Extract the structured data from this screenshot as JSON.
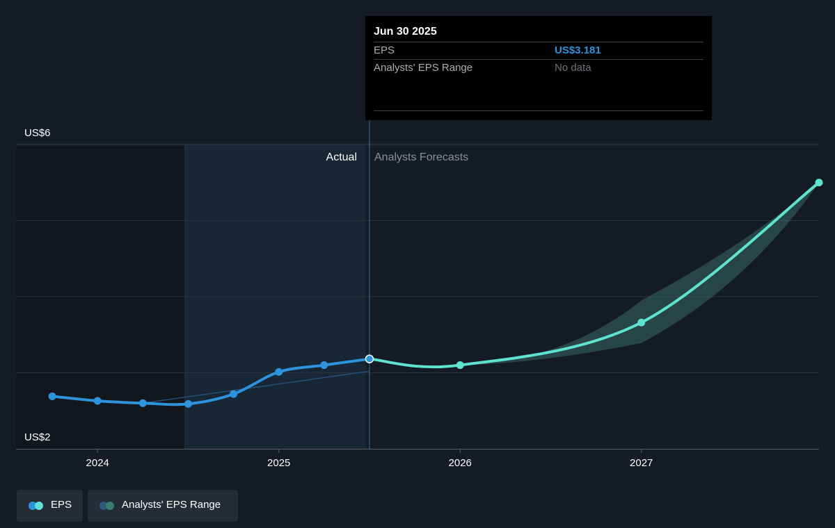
{
  "tooltip": {
    "date": "Jun 30 2025",
    "eps_label": "EPS",
    "eps_value": "US$3.181",
    "range_label": "Analysts' EPS Range",
    "range_value": "No data"
  },
  "legend": {
    "eps_label": "EPS",
    "range_label": "Analysts' EPS Range"
  },
  "colors": {
    "background": "#151b24",
    "eps_actual": "#2e93dd",
    "eps_forecast": "#5de3cf",
    "range_band": "#3d7a74",
    "tooltip_value": "#2e93dd",
    "muted_text": "#8a8f96"
  },
  "chart_data": {
    "type": "line",
    "y_tick_labels": [
      "US$6",
      "US$2"
    ],
    "ylim": [
      2,
      6
    ],
    "x_tick_labels": [
      "2024",
      "2025",
      "2026",
      "2027"
    ],
    "x_ticks": [
      2024.0,
      2025.0,
      2026.0,
      2027.0
    ],
    "xlim": [
      2023.55,
      2027.98
    ],
    "grid": true,
    "section_labels": {
      "actual": "Actual",
      "forecast": "Analysts Forecasts"
    },
    "divider_x": 2025.5,
    "series": [
      {
        "name": "EPS",
        "kind": "actual",
        "points": [
          [
            2023.75,
            2.69
          ],
          [
            2024.0,
            2.63
          ],
          [
            2024.25,
            2.6
          ],
          [
            2024.5,
            2.59
          ],
          [
            2024.75,
            2.72
          ],
          [
            2025.0,
            3.01
          ],
          [
            2025.25,
            3.1
          ],
          [
            2025.5,
            3.181
          ]
        ]
      },
      {
        "name": "EPS",
        "kind": "forecast",
        "points": [
          [
            2025.5,
            3.181
          ],
          [
            2026.0,
            3.1
          ],
          [
            2027.0,
            3.66
          ],
          [
            2027.98,
            5.5
          ]
        ]
      }
    ],
    "range_band": {
      "name": "Analysts' EPS Range",
      "upper": [
        [
          2026.0,
          3.1
        ],
        [
          2027.0,
          3.95
        ],
        [
          2027.98,
          5.5
        ]
      ],
      "lower": [
        [
          2026.0,
          3.1
        ],
        [
          2027.0,
          3.39
        ],
        [
          2027.98,
          5.5
        ]
      ]
    },
    "faint_line": [
      [
        2024.25,
        2.6
      ],
      [
        2025.5,
        3.02
      ]
    ]
  }
}
